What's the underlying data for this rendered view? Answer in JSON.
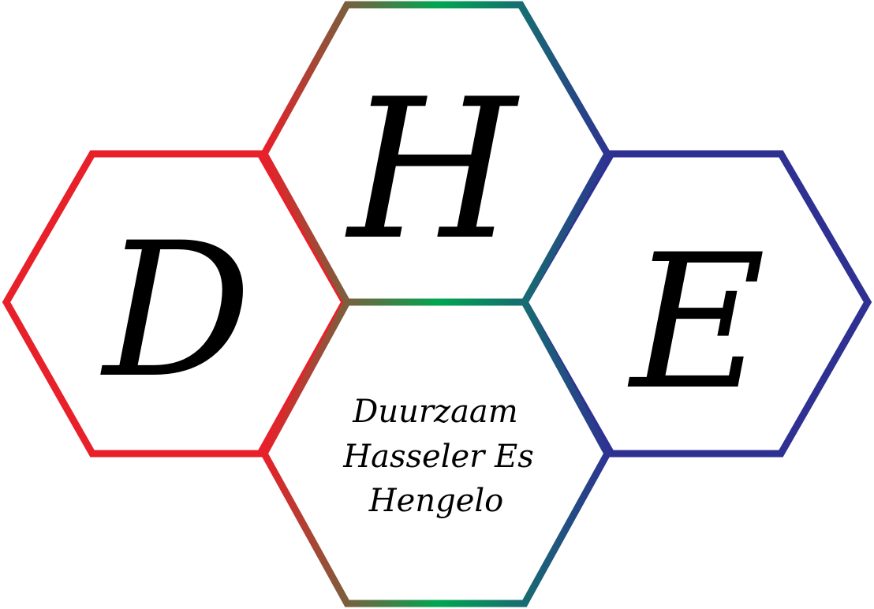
{
  "logo": {
    "letters": {
      "left": "D",
      "top": "H",
      "right": "E"
    },
    "tagline": {
      "line1": "Duurzaam",
      "line2": "Hasseler Es",
      "line3": "Hengelo"
    }
  },
  "colors": {
    "hex_left": "#e8202a",
    "hex_top_start": "#e8202a",
    "hex_top_mid": "#00a651",
    "hex_top_end": "#2e3192",
    "hex_right": "#2e3192",
    "text": "#000000",
    "background": "#ffffff"
  }
}
